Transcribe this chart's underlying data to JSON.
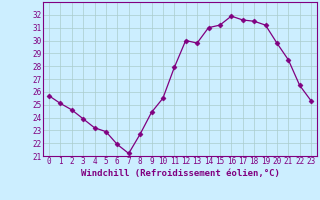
{
  "x": [
    0,
    1,
    2,
    3,
    4,
    5,
    6,
    7,
    8,
    9,
    10,
    11,
    12,
    13,
    14,
    15,
    16,
    17,
    18,
    19,
    20,
    21,
    22,
    23
  ],
  "y": [
    25.7,
    25.1,
    24.6,
    23.9,
    23.2,
    22.9,
    21.9,
    21.2,
    22.7,
    24.4,
    25.5,
    27.9,
    30.0,
    29.8,
    31.0,
    31.2,
    31.9,
    31.6,
    31.5,
    31.2,
    29.8,
    28.5,
    26.5,
    25.3
  ],
  "line_color": "#800080",
  "marker": "D",
  "marker_size": 2.5,
  "bg_color": "#cceeff",
  "grid_color": "#aacccc",
  "xlabel": "Windchill (Refroidissement éolien,°C)",
  "ylim": [
    21,
    33
  ],
  "xlim": [
    -0.5,
    23.5
  ],
  "yticks": [
    21,
    22,
    23,
    24,
    25,
    26,
    27,
    28,
    29,
    30,
    31,
    32
  ],
  "xticks": [
    0,
    1,
    2,
    3,
    4,
    5,
    6,
    7,
    8,
    9,
    10,
    11,
    12,
    13,
    14,
    15,
    16,
    17,
    18,
    19,
    20,
    21,
    22,
    23
  ],
  "tick_label_fontsize": 5.5,
  "xlabel_fontsize": 6.5
}
